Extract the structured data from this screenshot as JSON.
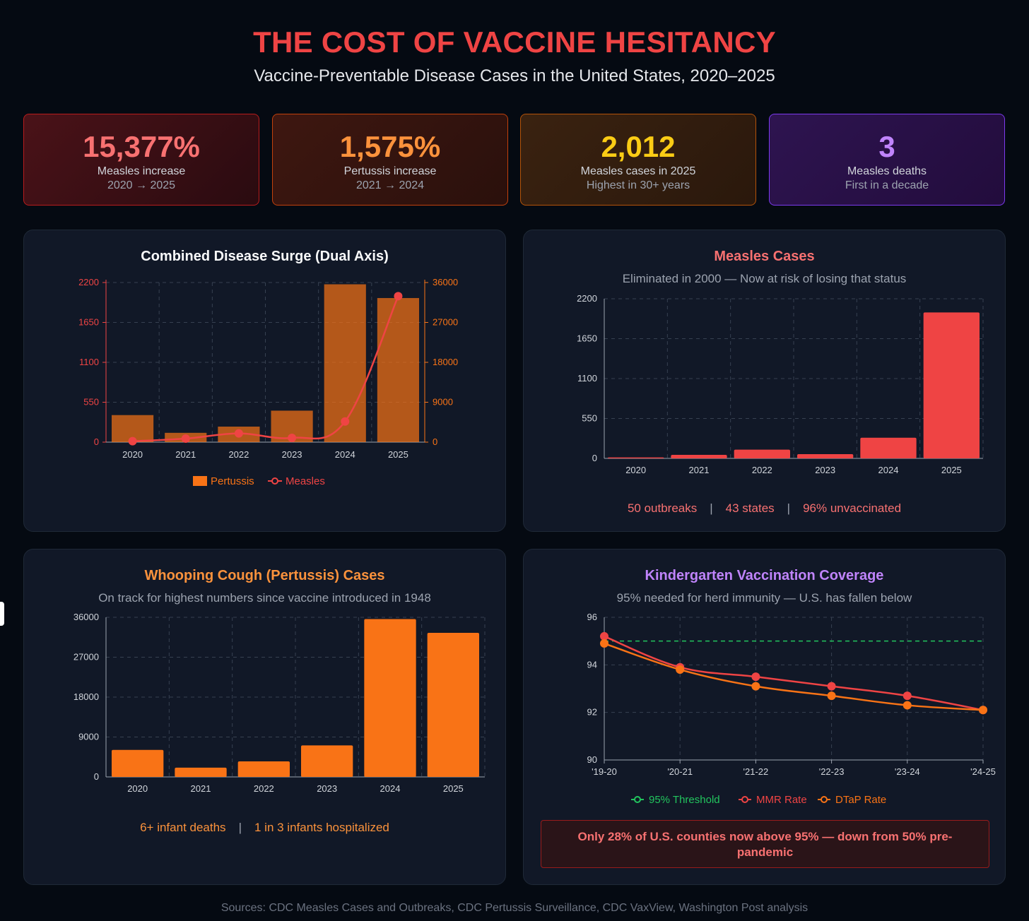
{
  "header": {
    "title": "THE COST OF VACCINE HESITANCY",
    "subtitle": "Vaccine-Preventable Disease Cases in the United States, 2020–2025"
  },
  "stats": [
    {
      "value": "15,377%",
      "label": "Measles increase",
      "sub": "2020 → 2025",
      "color": "#f87171"
    },
    {
      "value": "1,575%",
      "label": "Pertussis increase",
      "sub": "2021 → 2024",
      "color": "#fb923c"
    },
    {
      "value": "2,012",
      "label": "Measles cases in 2025",
      "sub": "Highest in 30+ years",
      "color": "#facc15"
    },
    {
      "value": "3",
      "label": "Measles deaths",
      "sub": "First in a decade",
      "color": "#c084fc"
    }
  ],
  "panels": {
    "combined": {
      "title": "Combined Disease Surge (Dual Axis)"
    },
    "measles": {
      "title": "Measles Cases",
      "subtitle": "Eliminated in 2000 — Now at risk of losing that status",
      "facts": [
        "50 outbreaks",
        "43 states",
        "96% unvaccinated"
      ]
    },
    "pertussis": {
      "title": "Whooping Cough (Pertussis) Cases",
      "subtitle": "On track for highest numbers since vaccine introduced in 1948",
      "facts": [
        "6+ infant deaths",
        "1 in 3 infants hospitalized"
      ]
    },
    "coverage": {
      "title": "Kindergarten Vaccination Coverage",
      "subtitle": "95% needed for herd immunity — U.S. has fallen below",
      "alert": "Only 28% of U.S. counties now above 95% — down from 50% pre-pandemic"
    }
  },
  "chart_data": [
    {
      "type": "bar+line",
      "title": "Combined Disease Surge (Dual Axis)",
      "categories": [
        "2020",
        "2021",
        "2022",
        "2023",
        "2024",
        "2025"
      ],
      "series": [
        {
          "name": "Pertussis",
          "kind": "bar",
          "axis": "right",
          "color": "#f97316",
          "values": [
            6100,
            2100,
            3500,
            7100,
            35600,
            32500
          ]
        },
        {
          "name": "Measles",
          "kind": "line",
          "axis": "left",
          "color": "#ef4444",
          "values": [
            13,
            49,
            121,
            59,
            285,
            2012
          ]
        }
      ],
      "left_axis": {
        "ticks": [
          0,
          550,
          1100,
          1650,
          2200
        ],
        "range": [
          0,
          2200
        ]
      },
      "right_axis": {
        "ticks": [
          0,
          9000,
          18000,
          27000,
          36000
        ],
        "range": [
          0,
          36000
        ]
      },
      "legend": [
        "Pertussis",
        "Measles"
      ]
    },
    {
      "type": "bar",
      "title": "Measles Cases",
      "categories": [
        "2020",
        "2021",
        "2022",
        "2023",
        "2024",
        "2025"
      ],
      "values": [
        13,
        49,
        121,
        59,
        285,
        2012
      ],
      "ylim": [
        0,
        2200
      ],
      "yticks": [
        0,
        550,
        1100,
        1650,
        2200
      ],
      "color": "#ef4444"
    },
    {
      "type": "bar",
      "title": "Whooping Cough (Pertussis) Cases",
      "categories": [
        "2020",
        "2021",
        "2022",
        "2023",
        "2024",
        "2025"
      ],
      "values": [
        6100,
        2100,
        3500,
        7100,
        35600,
        32500
      ],
      "ylim": [
        0,
        36000
      ],
      "yticks": [
        0,
        9000,
        18000,
        27000,
        36000
      ],
      "color": "#f97316"
    },
    {
      "type": "line",
      "title": "Kindergarten Vaccination Coverage",
      "categories": [
        "'19-20",
        "'20-21",
        "'21-22",
        "'22-23",
        "'23-24",
        "'24-25"
      ],
      "ylim": [
        90,
        96
      ],
      "yticks": [
        90,
        92,
        94,
        96
      ],
      "series": [
        {
          "name": "95% Threshold",
          "color": "#22c55e",
          "dashed": true,
          "values": [
            95,
            95,
            95,
            95,
            95,
            95
          ]
        },
        {
          "name": "MMR Rate",
          "color": "#ef4444",
          "values": [
            95.2,
            93.9,
            93.5,
            93.1,
            92.7,
            92.1
          ]
        },
        {
          "name": "DTaP Rate",
          "color": "#f97316",
          "values": [
            94.9,
            93.8,
            93.1,
            92.7,
            92.3,
            92.1
          ]
        }
      ]
    }
  ],
  "sources": "Sources: CDC Measles Cases and Outbreaks, CDC Pertussis Surveillance, CDC VaxView, Washington Post analysis"
}
